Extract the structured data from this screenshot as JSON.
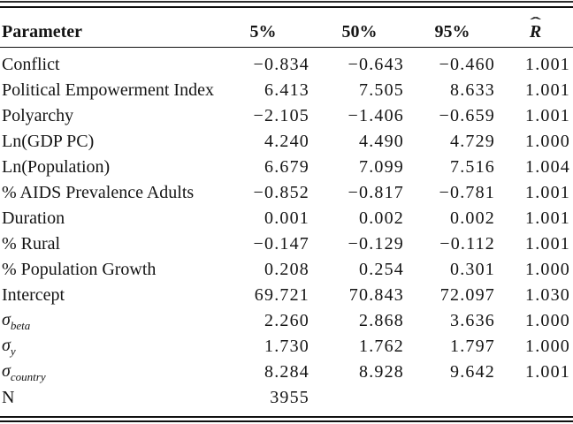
{
  "table": {
    "headers": [
      {
        "id": "parameter",
        "label": "Parameter"
      },
      {
        "id": "p5",
        "label": "5%"
      },
      {
        "id": "p50",
        "label": "50%"
      },
      {
        "id": "p95",
        "label": "95%"
      },
      {
        "id": "rhat",
        "label": "R",
        "hat": "ˆ"
      }
    ],
    "rows": [
      {
        "param": "Conflict",
        "values": [
          "−0.834",
          "−0.643",
          "−0.460",
          "1.001"
        ]
      },
      {
        "param": "Political Empowerment Index",
        "values": [
          "6.413",
          "7.505",
          "8.633",
          "1.001"
        ]
      },
      {
        "param": "Polyarchy",
        "values": [
          "−2.105",
          "−1.406",
          "−0.659",
          "1.001"
        ]
      },
      {
        "param": "Ln(GDP PC)",
        "values": [
          "4.240",
          "4.490",
          "4.729",
          "1.000"
        ]
      },
      {
        "param": "Ln(Population)",
        "values": [
          "6.679",
          "7.099",
          "7.516",
          "1.004"
        ]
      },
      {
        "param": "% AIDS Prevalence Adults",
        "values": [
          "−0.852",
          "−0.817",
          "−0.781",
          "1.001"
        ]
      },
      {
        "param": "Duration",
        "values": [
          "0.001",
          "0.002",
          "0.002",
          "1.001"
        ]
      },
      {
        "param": "% Rural",
        "values": [
          "−0.147",
          "−0.129",
          "−0.112",
          "1.001"
        ]
      },
      {
        "param": "% Population Growth",
        "values": [
          "0.208",
          "0.254",
          "0.301",
          "1.000"
        ]
      },
      {
        "param": "Intercept",
        "values": [
          "69.721",
          "70.843",
          "72.097",
          "1.030"
        ]
      },
      {
        "param": "σ",
        "sub": "beta",
        "values": [
          "2.260",
          "2.868",
          "3.636",
          "1.000"
        ]
      },
      {
        "param": "σ",
        "sub": "y",
        "values": [
          "1.730",
          "1.762",
          "1.797",
          "1.000"
        ]
      },
      {
        "param": "σ",
        "sub": "country",
        "values": [
          "8.284",
          "8.928",
          "9.642",
          "1.001"
        ]
      },
      {
        "param": "N",
        "values": [
          "3955",
          "",
          "",
          ""
        ]
      }
    ]
  },
  "colors": {
    "text": "#141414",
    "rule": "#101010",
    "background": "#ffffff"
  },
  "chart_data": {
    "type": "table",
    "columns": [
      "Parameter",
      "5%",
      "50%",
      "95%",
      "R̂"
    ],
    "rows": [
      [
        "Conflict",
        -0.834,
        -0.643,
        -0.46,
        1.001
      ],
      [
        "Political Empowerment Index",
        6.413,
        7.505,
        8.633,
        1.001
      ],
      [
        "Polyarchy",
        -2.105,
        -1.406,
        -0.659,
        1.001
      ],
      [
        "Ln(GDP PC)",
        4.24,
        4.49,
        4.729,
        1.0
      ],
      [
        "Ln(Population)",
        6.679,
        7.099,
        7.516,
        1.004
      ],
      [
        "% AIDS Prevalence Adults",
        -0.852,
        -0.817,
        -0.781,
        1.001
      ],
      [
        "Duration",
        0.001,
        0.002,
        0.002,
        1.001
      ],
      [
        "% Rural",
        -0.147,
        -0.129,
        -0.112,
        1.001
      ],
      [
        "% Population Growth",
        0.208,
        0.254,
        0.301,
        1.0
      ],
      [
        "Intercept",
        69.721,
        70.843,
        72.097,
        1.03
      ],
      [
        "sigma_beta",
        2.26,
        2.868,
        3.636,
        1.0
      ],
      [
        "sigma_y",
        1.73,
        1.762,
        1.797,
        1.0
      ],
      [
        "sigma_country",
        8.284,
        8.928,
        9.642,
        1.001
      ],
      [
        "N",
        3955,
        null,
        null,
        null
      ]
    ]
  }
}
